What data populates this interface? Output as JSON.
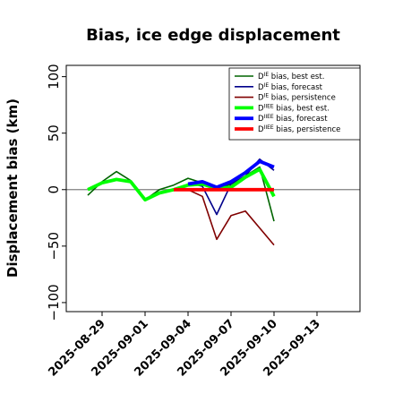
{
  "chart_data": {
    "type": "line",
    "title": "Bias, ice edge displacement",
    "xlabel": "",
    "ylabel": "Displacement bias (km)",
    "xlim": [
      "2025-08-26T12:00",
      "2025-09-16"
    ],
    "ylim": [
      -108,
      110
    ],
    "yticks": [
      100,
      50,
      0,
      -50,
      -100
    ],
    "xticks": [
      "2025-08-29",
      "2025-09-01",
      "2025-09-04",
      "2025-09-07",
      "2025-09-10",
      "2025-09-13"
    ],
    "highlight_tick": "2025-09-04",
    "highlight_color": "#228b22",
    "zero_line_color": "#808080",
    "legend_position": "upper right",
    "series": [
      {
        "name": "DIE bias, best est.",
        "sup": "IE",
        "rest": " bias, best est.",
        "color": "#006400",
        "width": 1.6,
        "x": [
          "2025-08-28",
          "2025-08-29",
          "2025-08-30",
          "2025-08-31",
          "2025-09-01",
          "2025-09-02",
          "2025-09-03",
          "2025-09-04",
          "2025-09-05",
          "2025-09-06",
          "2025-09-07",
          "2025-09-08",
          "2025-09-09",
          "2025-09-10"
        ],
        "y": [
          -5,
          7,
          16,
          8,
          -9,
          0,
          4,
          10,
          6,
          0,
          5,
          12,
          20,
          -28
        ]
      },
      {
        "name": "DIE bias, forecast",
        "sup": "IE",
        "rest": " bias, forecast",
        "color": "#00008b",
        "width": 1.6,
        "x": [
          "2025-09-04",
          "2025-09-05",
          "2025-09-06",
          "2025-09-07",
          "2025-09-08",
          "2025-09-09",
          "2025-09-10"
        ],
        "y": [
          6,
          3,
          -22,
          5,
          12,
          27,
          17
        ]
      },
      {
        "name": "DIE bias, persistence",
        "sup": "IE",
        "rest": " bias, persistence",
        "color": "#800000",
        "width": 1.6,
        "x": [
          "2025-09-04",
          "2025-09-05",
          "2025-09-06",
          "2025-09-07",
          "2025-09-08",
          "2025-09-10"
        ],
        "y": [
          0,
          -6,
          -44,
          -23,
          -19,
          -49
        ]
      },
      {
        "name": "DIIEE bias, best est.",
        "sup": "IIEE",
        "rest": " bias, best est.",
        "color": "#00ff00",
        "width": 3.8,
        "x": [
          "2025-08-28",
          "2025-08-29",
          "2025-08-30",
          "2025-08-31",
          "2025-09-01",
          "2025-09-02",
          "2025-09-03",
          "2025-09-04",
          "2025-09-05",
          "2025-09-06",
          "2025-09-07",
          "2025-09-08",
          "2025-09-09",
          "2025-09-10"
        ],
        "y": [
          0,
          6,
          9,
          7,
          -9,
          -3,
          0,
          4,
          5,
          1,
          2,
          11,
          18,
          -6
        ]
      },
      {
        "name": "DIIEE bias, forecast",
        "sup": "IIEE",
        "rest": " bias, forecast",
        "color": "#0000ff",
        "width": 3.8,
        "x": [
          "2025-09-04",
          "2025-09-05",
          "2025-09-06",
          "2025-09-07",
          "2025-09-08",
          "2025-09-09",
          "2025-09-10"
        ],
        "y": [
          5,
          7,
          2,
          7,
          15,
          25,
          20
        ]
      },
      {
        "name": "DIIEE bias, persistence",
        "sup": "IIEE",
        "rest": " bias, persistence",
        "color": "#ff0000",
        "width": 3.8,
        "x": [
          "2025-09-03",
          "2025-09-04",
          "2025-09-05",
          "2025-09-06",
          "2025-09-07",
          "2025-09-08",
          "2025-09-09",
          "2025-09-10"
        ],
        "y": [
          0,
          0,
          0,
          0,
          0,
          0,
          0,
          0
        ]
      }
    ]
  }
}
